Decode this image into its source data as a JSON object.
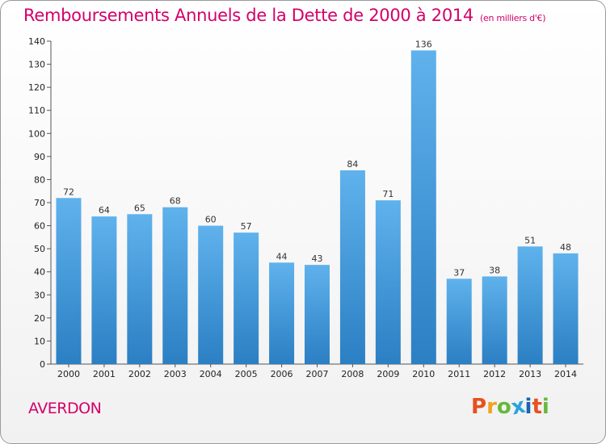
{
  "header": {
    "title": "Remboursements Annuels de la Dette de 2000 à 2014",
    "unit_note": "(en milliers d'€)"
  },
  "footer": {
    "city": "AVERDON",
    "logo": [
      "P",
      "r",
      "o",
      "x",
      "i",
      "t",
      "i"
    ]
  },
  "colors": {
    "title": "#d4006a",
    "bar_light": "#5fb2ec",
    "bar_dark": "#2b7fc3",
    "logo": [
      "#e6511e",
      "#f2a21c",
      "#67b83d",
      "#2aa3dc",
      "#1a62b3",
      "#e6511e",
      "#67b83d"
    ]
  },
  "chart_data": {
    "type": "bar",
    "title": "Remboursements Annuels de la Dette de 2000 à 2014",
    "xlabel": "",
    "ylabel": "",
    "categories": [
      "2000",
      "2001",
      "2002",
      "2003",
      "2004",
      "2005",
      "2006",
      "2007",
      "2008",
      "2009",
      "2010",
      "2011",
      "2012",
      "2013",
      "2014"
    ],
    "values": [
      72,
      64,
      65,
      68,
      60,
      57,
      44,
      43,
      84,
      71,
      136,
      37,
      38,
      51,
      48
    ],
    "ylim": [
      0,
      140
    ],
    "yticks": [
      0,
      10,
      20,
      30,
      40,
      50,
      60,
      70,
      80,
      90,
      100,
      110,
      120,
      130,
      140
    ],
    "grid": false,
    "data_labels": true
  }
}
